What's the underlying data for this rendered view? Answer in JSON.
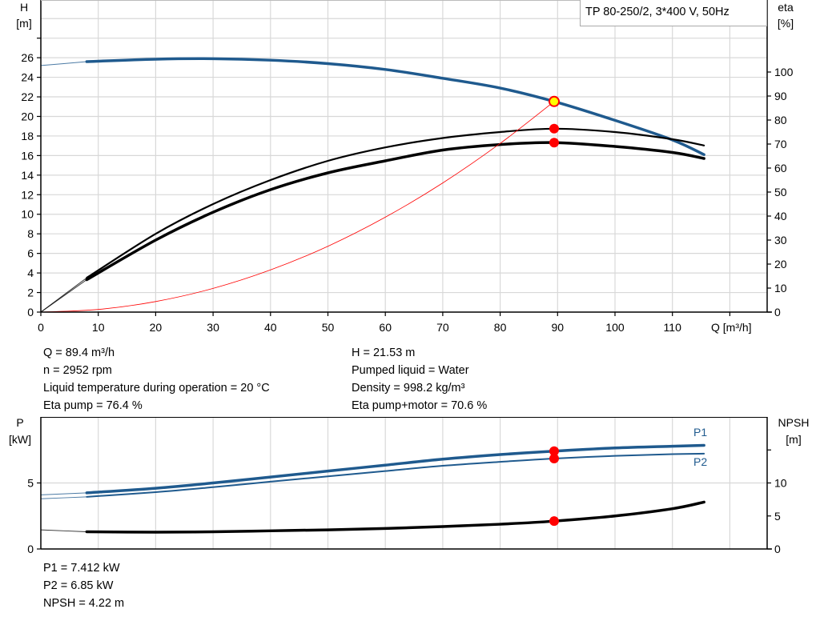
{
  "legend_box": "TP 80-250/2, 3*400 V, 50Hz",
  "info_left": [
    "Q = 89.4 m³/h",
    "n = 2952 rpm",
    "Liquid temperature during operation = 20 °C",
    "Eta pump = 76.4 %"
  ],
  "info_right": [
    "H = 21.53 m",
    "Pumped liquid = Water",
    "Density = 998.2 kg/m³",
    "Eta pump+motor = 70.6 %"
  ],
  "info_bottom": [
    "P1 = 7.412 kW",
    "P2 = 6.85 kW",
    "NPSH = 4.22 m"
  ],
  "colors": {
    "head": "#1f5a8e",
    "efficiency": "#000000",
    "system": "#ff0000",
    "duty_point": "#ff0000",
    "duty_point_fill_head": "#ffff00",
    "grid": "#d8d8d8"
  },
  "chart_data": [
    {
      "type": "line",
      "xlabel": "Q [m³/h]",
      "ylabel_left": [
        "H",
        "[m]"
      ],
      "ylabel_right": [
        "eta",
        "[%]"
      ],
      "xlim": [
        0,
        126.5
      ],
      "ylim_left": [
        0,
        31.9
      ],
      "ylim_right": [
        0,
        130
      ],
      "xticks": [
        0,
        10,
        20,
        30,
        40,
        50,
        60,
        70,
        80,
        90,
        100,
        110
      ],
      "yticks_left": [
        0,
        2,
        4,
        6,
        8,
        10,
        12,
        14,
        16,
        18,
        20,
        22,
        24,
        26
      ],
      "yticks_right": [
        0,
        10,
        20,
        30,
        40,
        50,
        60,
        70,
        80,
        90,
        100
      ],
      "grid": true,
      "curve_valid_from_q": 8,
      "series": [
        {
          "id": "H",
          "axis": "left",
          "color": "#1f5a8e",
          "width": 3.5,
          "points": [
            [
              0,
              25.2
            ],
            [
              8,
              25.6
            ],
            [
              20,
              25.85
            ],
            [
              30,
              25.9
            ],
            [
              40,
              25.75
            ],
            [
              50,
              25.4
            ],
            [
              60,
              24.8
            ],
            [
              70,
              23.9
            ],
            [
              80,
              22.9
            ],
            [
              89.4,
              21.53
            ],
            [
              100,
              19.6
            ],
            [
              110,
              17.6
            ],
            [
              115.5,
              16.1
            ]
          ]
        },
        {
          "id": "eta_pump",
          "axis": "right",
          "color": "#000000",
          "width": 2.2,
          "points": [
            [
              0,
              0
            ],
            [
              8,
              14.3
            ],
            [
              20,
              32.6
            ],
            [
              30,
              45
            ],
            [
              40,
              55
            ],
            [
              50,
              63
            ],
            [
              60,
              68.6
            ],
            [
              70,
              72.5
            ],
            [
              80,
              75
            ],
            [
              89.4,
              76.4
            ],
            [
              100,
              75
            ],
            [
              110,
              72
            ],
            [
              115.5,
              69.4
            ]
          ]
        },
        {
          "id": "eta_pump_motor",
          "axis": "right",
          "color": "#000000",
          "width": 3.5,
          "points": [
            [
              0,
              0
            ],
            [
              8,
              13.5
            ],
            [
              20,
              30
            ],
            [
              30,
              41.6
            ],
            [
              40,
              51
            ],
            [
              50,
              58
            ],
            [
              60,
              63
            ],
            [
              70,
              67.5
            ],
            [
              80,
              69.8
            ],
            [
              89.4,
              70.6
            ],
            [
              100,
              69
            ],
            [
              110,
              66.5
            ],
            [
              115.5,
              64
            ]
          ]
        },
        {
          "id": "system_curve",
          "axis": "left",
          "color": "#ff0000",
          "width": 0.8,
          "thin_all": true,
          "points": [
            [
              0,
              0
            ],
            [
              10,
              0.27
            ],
            [
              20,
              1.08
            ],
            [
              30,
              2.42
            ],
            [
              40,
              4.31
            ],
            [
              50,
              6.73
            ],
            [
              60,
              9.7
            ],
            [
              70,
              13.2
            ],
            [
              80,
              17.24
            ],
            [
              89.4,
              21.53
            ]
          ]
        }
      ],
      "duty_points": [
        {
          "axis": "left",
          "q": 89.4,
          "value": 21.53,
          "fill": "#ffff00"
        },
        {
          "axis": "right",
          "q": 89.4,
          "value": 76.4,
          "fill": "#ff0000"
        },
        {
          "axis": "right",
          "q": 89.4,
          "value": 70.6,
          "fill": "#ff0000"
        }
      ]
    },
    {
      "type": "line",
      "ylabel_left": [
        "P",
        "[kW]"
      ],
      "ylabel_right": [
        "NPSH",
        "[m]"
      ],
      "xlim": [
        0,
        126.5
      ],
      "ylim_left": [
        0,
        10
      ],
      "ylim_right": [
        0,
        20
      ],
      "xticks": [
        0,
        10,
        20,
        30,
        40,
        50,
        60,
        70,
        80,
        90,
        100,
        110,
        120
      ],
      "yticks_left": [
        0,
        5
      ],
      "yticks_right": [
        0,
        5,
        10,
        15
      ],
      "yticks_right_labels": [
        "0",
        "5",
        "10",
        ""
      ],
      "grid": true,
      "curve_valid_from_q": 8,
      "series": [
        {
          "id": "P1",
          "name": "P1",
          "axis": "left",
          "color": "#1f5a8e",
          "width": 3.5,
          "points": [
            [
              0,
              4.1
            ],
            [
              8,
              4.25
            ],
            [
              20,
              4.6
            ],
            [
              30,
              5.0
            ],
            [
              40,
              5.45
            ],
            [
              50,
              5.9
            ],
            [
              60,
              6.35
            ],
            [
              70,
              6.8
            ],
            [
              80,
              7.15
            ],
            [
              89.4,
              7.412
            ],
            [
              100,
              7.65
            ],
            [
              110,
              7.78
            ],
            [
              115.5,
              7.85
            ]
          ]
        },
        {
          "id": "P2",
          "name": "P2",
          "axis": "left",
          "color": "#1f5a8e",
          "width": 2,
          "points": [
            [
              0,
              3.8
            ],
            [
              8,
              3.95
            ],
            [
              20,
              4.3
            ],
            [
              30,
              4.68
            ],
            [
              40,
              5.1
            ],
            [
              50,
              5.5
            ],
            [
              60,
              5.9
            ],
            [
              70,
              6.3
            ],
            [
              80,
              6.6
            ],
            [
              89.4,
              6.85
            ],
            [
              100,
              7.05
            ],
            [
              110,
              7.18
            ],
            [
              115.5,
              7.22
            ]
          ]
        },
        {
          "id": "NPSH",
          "axis": "right",
          "color": "#000000",
          "width": 3.5,
          "points": [
            [
              0,
              2.9
            ],
            [
              8,
              2.6
            ],
            [
              20,
              2.55
            ],
            [
              30,
              2.6
            ],
            [
              40,
              2.75
            ],
            [
              50,
              2.9
            ],
            [
              60,
              3.1
            ],
            [
              70,
              3.4
            ],
            [
              80,
              3.75
            ],
            [
              89.4,
              4.22
            ],
            [
              100,
              5.0
            ],
            [
              110,
              6.1
            ],
            [
              115.5,
              7.1
            ]
          ]
        }
      ],
      "duty_points": [
        {
          "axis": "left",
          "q": 89.4,
          "value": 7.412,
          "fill": "#ff0000"
        },
        {
          "axis": "left",
          "q": 89.4,
          "value": 6.85,
          "fill": "#ff0000"
        },
        {
          "axis": "right",
          "q": 89.4,
          "value": 4.22,
          "fill": "#ff0000"
        }
      ]
    }
  ]
}
